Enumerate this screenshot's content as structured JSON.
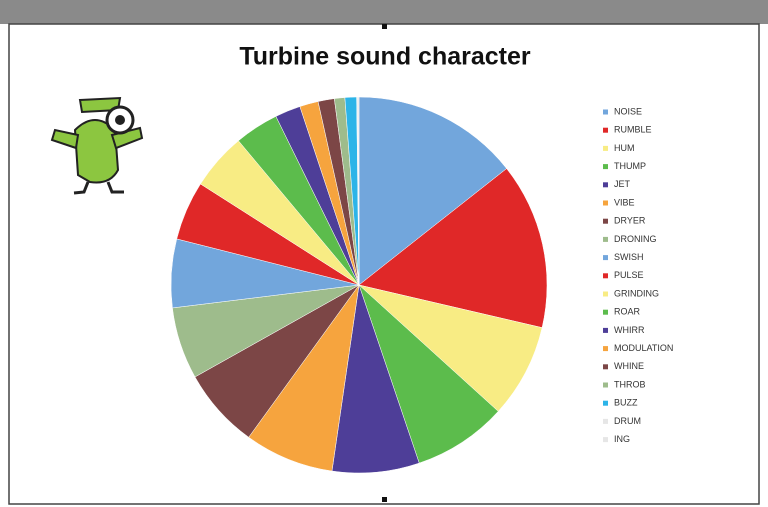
{
  "chart_data": {
    "type": "pie",
    "title": "Turbine sound character",
    "categories": [
      "NOISE",
      "RUMBLE",
      "HUM",
      "THUMP",
      "JET",
      "VIBE",
      "DRYER",
      "DRONING",
      "SWISH",
      "PULSE",
      "GRINDING",
      "ROAR",
      "WHIRR",
      "MODULATION",
      "WHINE",
      "THROB",
      "BUZZ",
      "DRUM",
      "ING"
    ],
    "values": [
      14.4,
      14.3,
      8.1,
      8.1,
      7.5,
      7.7,
      6.9,
      6.2,
      5.9,
      5.1,
      4.9,
      3.8,
      2.2,
      1.6,
      1.4,
      0.9,
      1.0,
      0.1,
      0.1
    ],
    "colors": [
      "#72a6dc",
      "#e02828",
      "#f8ec84",
      "#5cbc4c",
      "#4e3e98",
      "#f6a43e",
      "#7c4646",
      "#9ebc8c",
      "#72a6dc",
      "#e02828",
      "#f8ec84",
      "#5cbc4c",
      "#4e3e98",
      "#f6a43e",
      "#7c4646",
      "#9ebc8c",
      "#2cb4e8",
      "#e6e6e6",
      "#e6e6e6"
    ],
    "legend": "right"
  }
}
